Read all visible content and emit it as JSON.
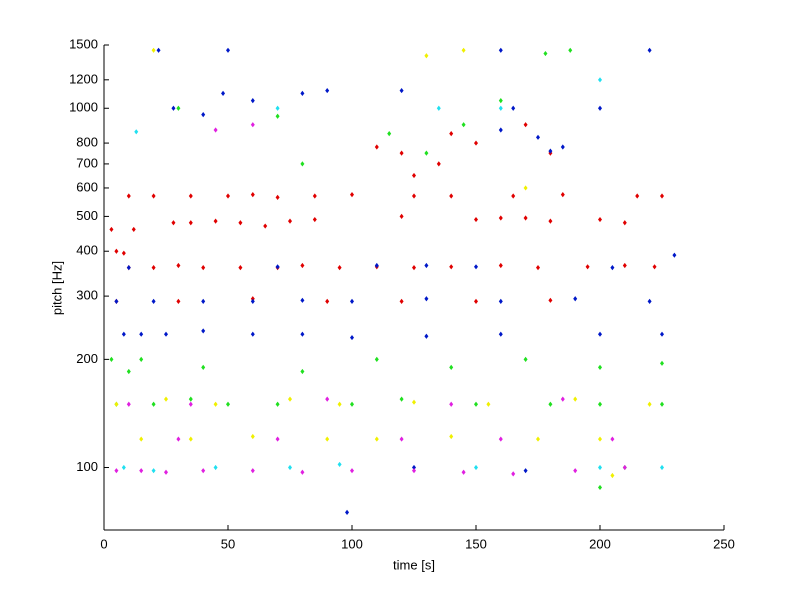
{
  "chart_data": {
    "type": "scatter",
    "xlabel": "time [s]",
    "ylabel": "pitch [Hz]",
    "xlim": [
      0,
      250
    ],
    "xticks": [
      0,
      50,
      100,
      150,
      200,
      250
    ],
    "ylim": [
      67,
      1500
    ],
    "yticks": [
      100,
      200,
      300,
      400,
      500,
      600,
      700,
      800,
      1000,
      1200,
      1500
    ],
    "yscale": "log",
    "grid": false,
    "series": [
      {
        "color": "#e00000",
        "x": [
          5,
          8,
          10,
          20,
          30,
          40,
          55,
          70,
          80,
          95,
          110,
          125,
          140,
          160,
          175,
          195,
          210,
          222,
          3,
          12,
          28,
          35,
          45,
          55,
          65,
          75,
          85,
          120,
          150,
          160,
          170,
          180,
          200,
          210,
          10,
          20,
          35,
          50,
          60,
          70,
          85,
          100,
          125,
          140,
          165,
          185,
          215,
          225,
          5,
          30,
          60,
          90,
          120,
          150,
          180,
          110,
          120,
          135,
          140,
          150,
          180,
          170,
          125
        ],
        "values": [
          400,
          395,
          360,
          360,
          365,
          360,
          360,
          360,
          365,
          360,
          362,
          360,
          362,
          365,
          360,
          362,
          365,
          362,
          460,
          460,
          480,
          480,
          485,
          480,
          470,
          485,
          490,
          500,
          490,
          495,
          495,
          485,
          490,
          480,
          570,
          570,
          570,
          570,
          575,
          565,
          570,
          575,
          570,
          570,
          570,
          575,
          570,
          570,
          290,
          290,
          295,
          290,
          290,
          290,
          292,
          780,
          750,
          700,
          850,
          800,
          750,
          900,
          650
        ]
      },
      {
        "color": "#0018c8",
        "x": [
          8,
          15,
          25,
          40,
          60,
          80,
          100,
          130,
          160,
          200,
          225,
          5,
          20,
          40,
          60,
          80,
          100,
          130,
          160,
          190,
          220,
          10,
          70,
          110,
          130,
          150,
          205,
          28,
          40,
          48,
          60,
          80,
          90,
          50,
          22,
          120,
          160,
          220,
          200,
          180,
          185,
          175,
          160,
          165,
          98,
          125,
          170,
          230
        ],
        "values": [
          235,
          235,
          235,
          240,
          235,
          235,
          230,
          232,
          235,
          235,
          235,
          290,
          290,
          290,
          290,
          292,
          290,
          295,
          290,
          295,
          290,
          360,
          362,
          365,
          365,
          362,
          360,
          1000,
          960,
          1100,
          1050,
          1100,
          1120,
          1450,
          1450,
          1120,
          1450,
          1450,
          1000,
          760,
          780,
          830,
          870,
          1000,
          75,
          100,
          98,
          390
        ]
      },
      {
        "color": "#20e020",
        "x": [
          3,
          10,
          5,
          20,
          35,
          50,
          70,
          100,
          120,
          150,
          180,
          200,
          225,
          15,
          40,
          80,
          110,
          140,
          170,
          200,
          225,
          30,
          70,
          80,
          115,
          130,
          145,
          160,
          188,
          178,
          200,
          210
        ],
        "values": [
          200,
          185,
          150,
          150,
          155,
          150,
          150,
          150,
          155,
          150,
          150,
          150,
          150,
          200,
          190,
          185,
          200,
          190,
          200,
          190,
          195,
          1000,
          950,
          700,
          850,
          750,
          900,
          1050,
          1450,
          1420,
          88,
          100
        ]
      },
      {
        "color": "#f0f000",
        "x": [
          20,
          5,
          25,
          45,
          75,
          95,
          125,
          155,
          190,
          220,
          15,
          35,
          60,
          90,
          110,
          140,
          175,
          200,
          170,
          145,
          130,
          205
        ],
        "values": [
          1450,
          150,
          155,
          150,
          155,
          150,
          152,
          150,
          155,
          150,
          120,
          120,
          122,
          120,
          120,
          122,
          120,
          120,
          600,
          1450,
          1400,
          95
        ]
      },
      {
        "color": "#e020e0",
        "x": [
          5,
          15,
          25,
          40,
          60,
          80,
          100,
          125,
          145,
          165,
          190,
          210,
          10,
          35,
          90,
          140,
          185,
          30,
          70,
          120,
          160,
          205,
          60,
          45
        ],
        "values": [
          98,
          98,
          97,
          98,
          98,
          97,
          98,
          98,
          97,
          96,
          98,
          100,
          150,
          150,
          155,
          150,
          155,
          120,
          120,
          120,
          120,
          120,
          900,
          870
        ]
      },
      {
        "color": "#20e0f0",
        "x": [
          8,
          20,
          45,
          75,
          95,
          150,
          200,
          225,
          13,
          70,
          160,
          200,
          135
        ],
        "values": [
          100,
          98,
          100,
          100,
          102,
          100,
          100,
          100,
          860,
          1000,
          1000,
          1200,
          1000
        ]
      }
    ]
  }
}
